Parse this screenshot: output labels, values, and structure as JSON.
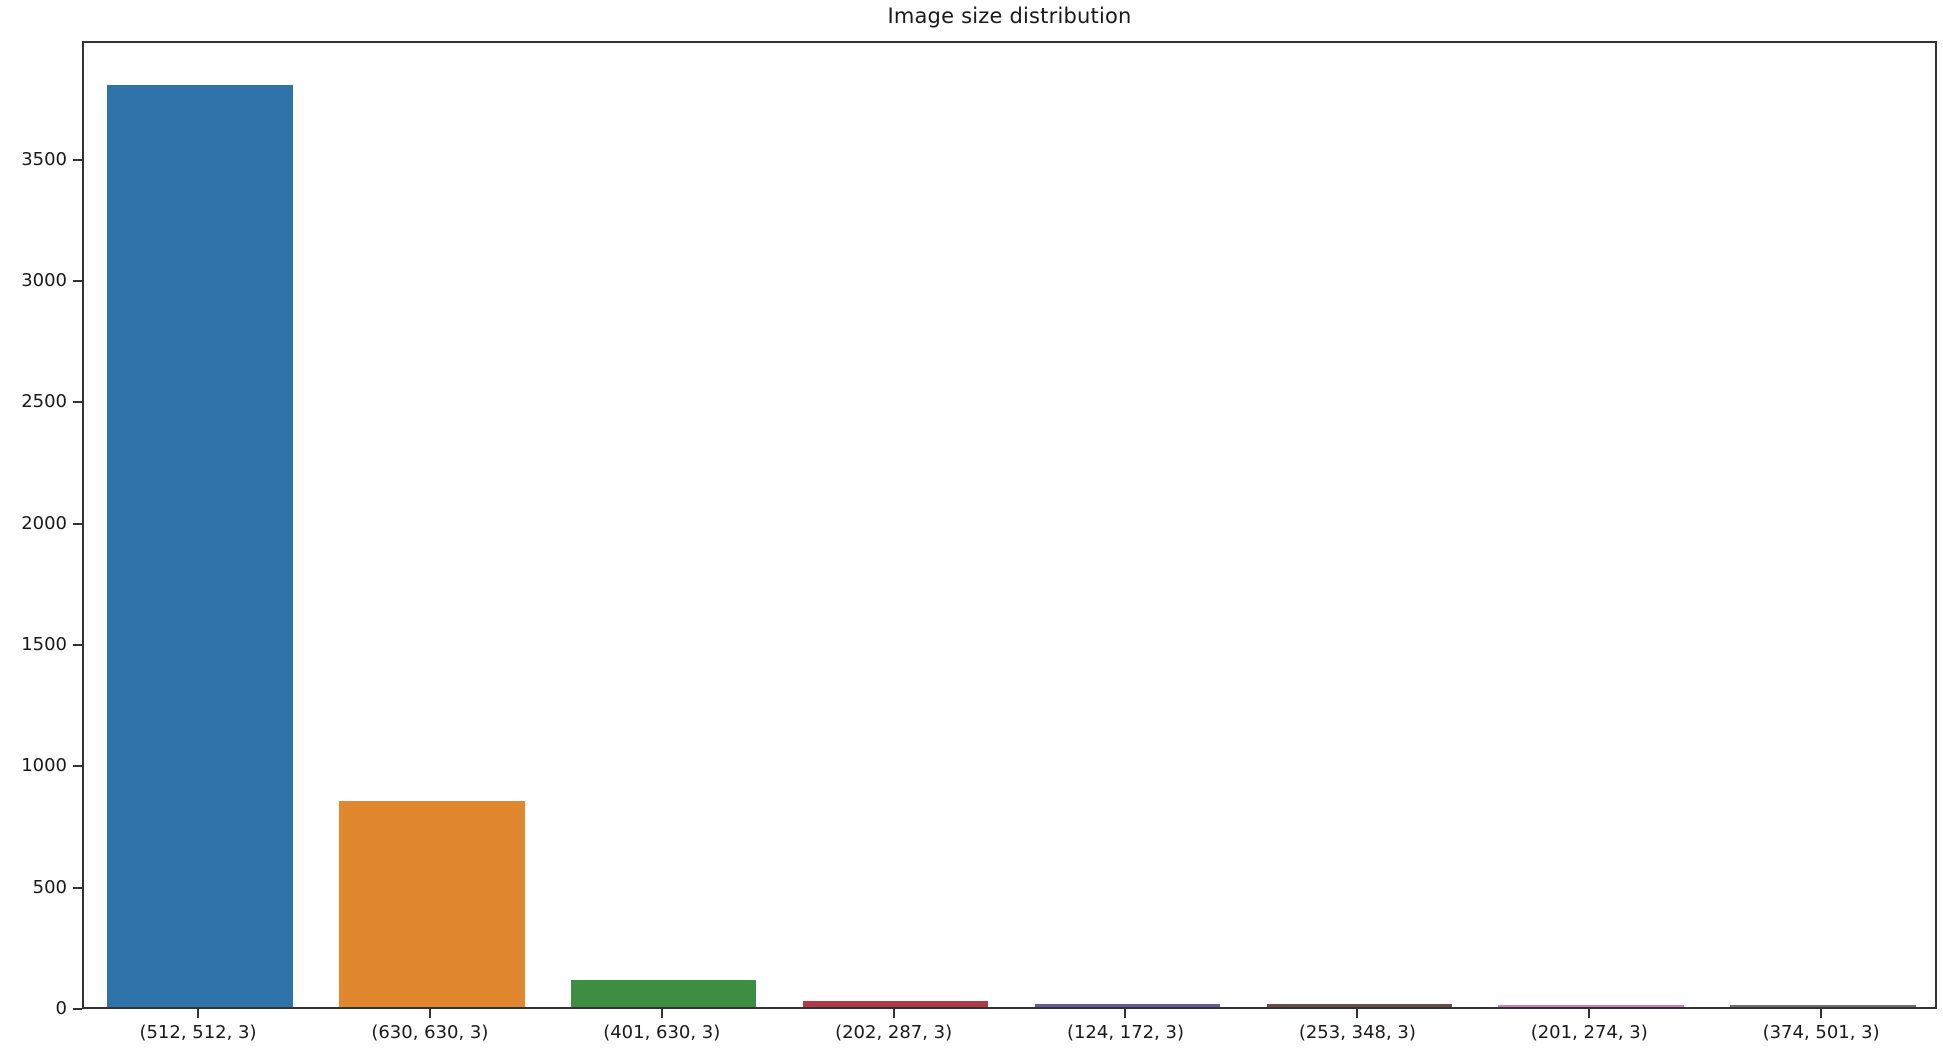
{
  "title": "Image size distribution",
  "chart_data": {
    "type": "bar",
    "title": "Image size distribution",
    "categories": [
      "(512, 512, 3)",
      "(630, 630, 3)",
      "(401, 630, 3)",
      "(202, 287, 3)",
      "(124, 172, 3)",
      "(253, 348, 3)",
      "(201, 274, 3)",
      "(374, 501, 3)"
    ],
    "values": [
      3800,
      850,
      110,
      25,
      14,
      12,
      10,
      8
    ],
    "bar_colors": [
      "#2e74a8",
      "#e1872f",
      "#3d8e41",
      "#b23a48",
      "#6a5a94",
      "#6b4c42",
      "#cd7fb5",
      "#6f6f6f"
    ],
    "xlabel": "",
    "ylabel": "",
    "ylim": [
      0,
      3990
    ],
    "yticks": [
      0,
      500,
      1000,
      1500,
      2000,
      2500,
      3000,
      3500
    ],
    "grid": false,
    "legend": "none",
    "bar_width_fraction": 0.8
  },
  "colors": {
    "frame": "#333333",
    "text": "#1a1a1a",
    "background": "#ffffff"
  }
}
